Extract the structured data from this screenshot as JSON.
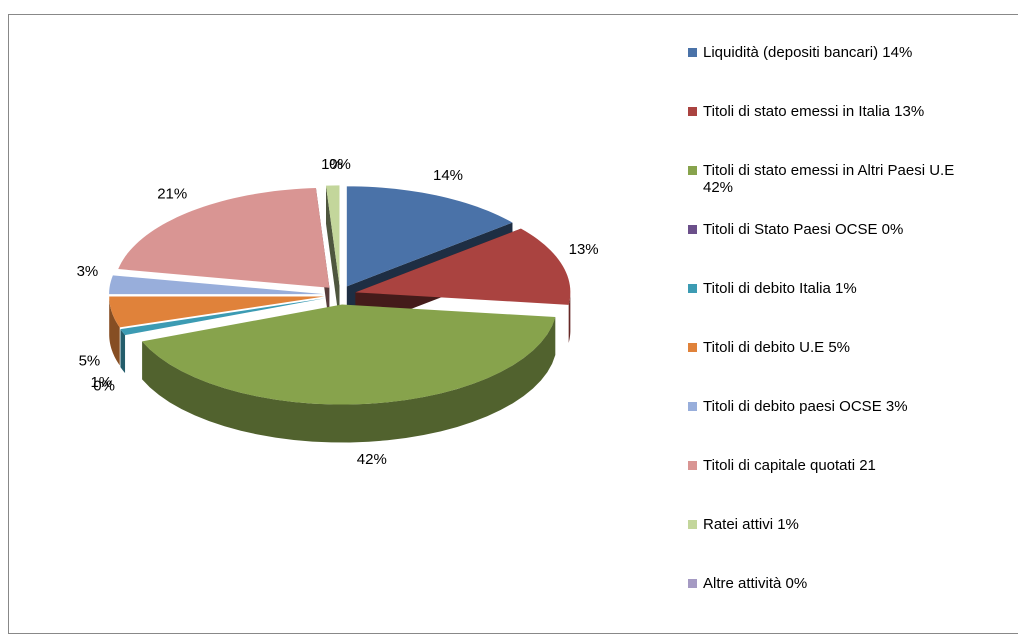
{
  "chart_data": {
    "type": "pie",
    "categories": [
      "Liquidità (depositi bancari)   14%",
      "Titoli di stato emessi in Italia   13%",
      "Titoli di stato emessi in Altri Paesi U.E   42%",
      "Titoli di Stato  Paesi OCSE   0%",
      "Titoli di debito Italia   1%",
      "Titoli di debito U.E   5%",
      "Titoli di debito paesi OCSE   3%",
      "Titoli di capitale quotati   21",
      "Ratei attivi   1%",
      "Altre attività   0%"
    ],
    "values": [
      14,
      13,
      42,
      0,
      1,
      5,
      3,
      21,
      1,
      0
    ],
    "value_labels": [
      "14%",
      "13%",
      "42%",
      "0%",
      "1%",
      "5%",
      "3%",
      "21%",
      "1%",
      "0%"
    ],
    "colors": [
      "#4a72a8",
      "#aa4340",
      "#87a34c",
      "#6b4f8a",
      "#3c9bb3",
      "#e0823a",
      "#98aedb",
      "#d99593",
      "#c3d69b",
      "#a59ac3"
    ],
    "legend": "right"
  }
}
